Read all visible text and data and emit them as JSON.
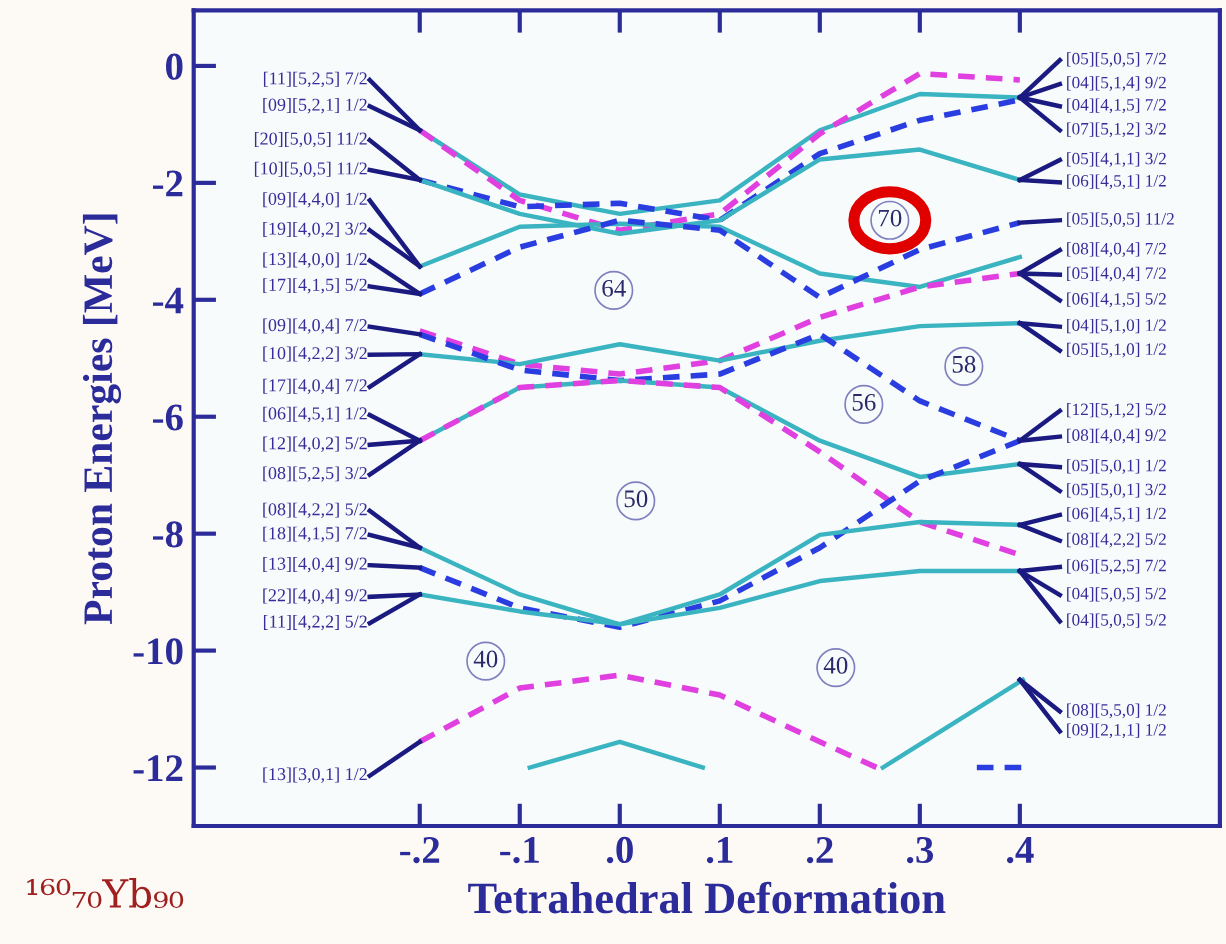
{
  "chart_data": {
    "type": "line",
    "xlabel": "Tetrahedral Deformation",
    "ylabel": "Proton Energies [MeV]",
    "xlim": [
      -0.426,
      0.6
    ],
    "ylim": [
      -13,
      0.95
    ],
    "xticks": [
      {
        "value": -0.2,
        "label": "-.2"
      },
      {
        "value": -0.1,
        "label": "-.1"
      },
      {
        "value": 0,
        "label": ".0"
      },
      {
        "value": 0.1,
        "label": ".1"
      },
      {
        "value": 0.2,
        "label": ".2"
      },
      {
        "value": 0.3,
        "label": ".3"
      },
      {
        "value": 0.4,
        "label": ".4"
      }
    ],
    "yticks": [
      0,
      -2,
      -4,
      -6,
      -8,
      -10,
      -12
    ],
    "grid": false,
    "series": [
      {
        "color": "#3bb4c1",
        "line_style": "solid",
        "x": [
          -0.2,
          -0.1,
          0,
          0.1,
          0.2,
          0.3,
          0.4
        ],
        "values": [
          -1.1,
          -2.2,
          -2.53,
          -2.3,
          -1.1,
          -0.48,
          -0.54
        ]
      },
      {
        "color": "#e040e0",
        "line_style": "dashed",
        "x": [
          -0.2,
          -0.1,
          0,
          0.1,
          0.2,
          0.3,
          0.4
        ],
        "values": [
          -1.1,
          -2.3,
          -2.81,
          -2.53,
          -1.16,
          -0.13,
          -0.24
        ]
      },
      {
        "color": "#2a3de0",
        "line_style": "dashed",
        "x": [
          -0.2,
          -0.1,
          0,
          0.1,
          0.2,
          0.3,
          0.4
        ],
        "values": [
          -1.95,
          -2.41,
          -2.35,
          -2.64,
          -1.5,
          -0.93,
          -0.58
        ]
      },
      {
        "color": "#3bb4c1",
        "line_style": "solid",
        "x": [
          -0.2,
          -0.1,
          0,
          0.1,
          0.2,
          0.3,
          0.4
        ],
        "values": [
          -1.95,
          -2.53,
          -2.87,
          -2.64,
          -1.6,
          -1.43,
          -1.95
        ]
      },
      {
        "color": "#3bb4c1",
        "line_style": "solid",
        "x": [
          -0.2,
          -0.1,
          0,
          0.1,
          0.2,
          0.3,
          0.4
        ],
        "values": [
          -3.43,
          -2.75,
          -2.7,
          -2.75,
          -3.55,
          -3.78,
          -3.27
        ]
      },
      {
        "color": "#2a3de0",
        "line_style": "dashed",
        "x": [
          -0.2,
          -0.1,
          0,
          0.1,
          0.2,
          0.3,
          0.4
        ],
        "values": [
          -3.9,
          -3.1,
          -2.64,
          -2.81,
          -3.96,
          -3.14,
          -2.68
        ]
      },
      {
        "color": "#e040e0",
        "line_style": "dashed",
        "x": [
          -0.2,
          -0.1,
          0,
          0.1,
          0.2,
          0.3,
          0.4
        ],
        "values": [
          -4.53,
          -5.1,
          -5.27,
          -5.04,
          -4.3,
          -3.78,
          -3.55
        ]
      },
      {
        "color": "#3bb4c1",
        "line_style": "solid",
        "x": [
          -0.2,
          -0.1,
          0,
          0.1,
          0.2,
          0.3,
          0.4
        ],
        "values": [
          -4.93,
          -5.1,
          -4.76,
          -5.04,
          -4.7,
          -4.45,
          -4.4
        ]
      },
      {
        "color": "#2a3de0",
        "line_style": "dashed",
        "x": [
          -0.2,
          -0.1,
          0,
          0.1,
          0.2,
          0.3,
          0.4
        ],
        "values": [
          -4.59,
          -5.2,
          -5.38,
          -5.27,
          -4.59,
          -5.73,
          -6.41
        ]
      },
      {
        "color": "#3bb4c1",
        "line_style": "solid",
        "x": [
          -0.2,
          -0.1,
          0,
          0.1,
          0.2,
          0.3,
          0.4
        ],
        "values": [
          -6.41,
          -5.5,
          -5.38,
          -5.5,
          -6.41,
          -7.03,
          -6.81
        ]
      },
      {
        "color": "#e040e0",
        "line_style": "dashed",
        "x": [
          -0.2,
          -0.1,
          0,
          0.1,
          0.2,
          0.3,
          0.4
        ],
        "values": [
          -6.41,
          -5.5,
          -5.38,
          -5.5,
          -6.6,
          -7.8,
          -8.36
        ]
      },
      {
        "color": "#2a3de0",
        "line_style": "dashed",
        "x": [
          -0.2,
          -0.1,
          0,
          0.1,
          0.2,
          0.3,
          0.4
        ],
        "values": [
          -8.58,
          -9.27,
          -9.6,
          -9.15,
          -8.24,
          -7.1,
          -6.41
        ]
      },
      {
        "color": "#3bb4c1",
        "line_style": "solid",
        "x": [
          -0.2,
          -0.1,
          0,
          0.1,
          0.2,
          0.3,
          0.4
        ],
        "values": [
          -8.24,
          -9.04,
          -9.55,
          -9.04,
          -8.02,
          -7.8,
          -7.85
        ]
      },
      {
        "color": "#3bb4c1",
        "line_style": "solid",
        "x": [
          -0.2,
          -0.1,
          0,
          0.1,
          0.2,
          0.3,
          0.4
        ],
        "values": [
          -9.04,
          -9.33,
          -9.55,
          -9.27,
          -8.81,
          -8.64,
          -8.64
        ]
      },
      {
        "color": "#e040e0",
        "line_style": "dashed",
        "x": [
          -0.2,
          -0.1,
          0,
          0.1,
          0.2,
          0.257
        ],
        "values": [
          -11.56,
          -10.64,
          -10.42,
          -10.76,
          -11.56,
          -12.0
        ]
      },
      {
        "color": "#3bb4c1",
        "line_style": "solid",
        "x": [
          -0.09,
          0,
          0.083
        ],
        "values": [
          -12.0,
          -11.56,
          -12.0
        ]
      },
      {
        "color": "#3bb4c1",
        "line_style": "solid",
        "x": [
          0.263,
          0.403
        ],
        "values": [
          -12.0,
          -10.5
        ]
      },
      {
        "color": "#2a3de0",
        "line_style": "dashed",
        "x": [
          0.357,
          0.403
        ],
        "values": [
          -12.0,
          -12.0
        ]
      },
      {
        "color": "#1a1a80",
        "line_style": "solid",
        "x": [
          -0.25,
          -0.2
        ],
        "values": [
          -0.24,
          -1.1
        ]
      },
      {
        "color": "#1a1a80",
        "line_style": "solid",
        "x": [
          -0.25,
          -0.2
        ],
        "values": [
          -0.69,
          -1.1
        ]
      },
      {
        "color": "#1a1a80",
        "line_style": "solid",
        "x": [
          -0.25,
          -0.2
        ],
        "values": [
          -1.27,
          -1.95
        ]
      },
      {
        "color": "#1a1a80",
        "line_style": "solid",
        "x": [
          -0.25,
          -0.2
        ],
        "values": [
          -1.78,
          -1.95
        ]
      },
      {
        "color": "#1a1a80",
        "line_style": "solid",
        "x": [
          -0.25,
          -0.2
        ],
        "values": [
          -2.3,
          -3.43
        ]
      },
      {
        "color": "#1a1a80",
        "line_style": "solid",
        "x": [
          -0.25,
          -0.2
        ],
        "values": [
          -2.81,
          -3.43
        ]
      },
      {
        "color": "#1a1a80",
        "line_style": "solid",
        "x": [
          -0.25,
          -0.2
        ],
        "values": [
          -3.33,
          -3.9
        ]
      },
      {
        "color": "#1a1a80",
        "line_style": "solid",
        "x": [
          -0.25,
          -0.2
        ],
        "values": [
          -3.77,
          -3.9
        ]
      },
      {
        "color": "#1a1a80",
        "line_style": "solid",
        "x": [
          -0.25,
          -0.2
        ],
        "values": [
          -4.46,
          -4.59
        ]
      },
      {
        "color": "#1a1a80",
        "line_style": "solid",
        "x": [
          -0.25,
          -0.2
        ],
        "values": [
          -4.94,
          -4.93
        ]
      },
      {
        "color": "#1a1a80",
        "line_style": "solid",
        "x": [
          -0.25,
          -0.2
        ],
        "values": [
          -5.49,
          -4.93
        ]
      },
      {
        "color": "#1a1a80",
        "line_style": "solid",
        "x": [
          -0.25,
          -0.2
        ],
        "values": [
          -5.97,
          -6.41
        ]
      },
      {
        "color": "#1a1a80",
        "line_style": "solid",
        "x": [
          -0.25,
          -0.2
        ],
        "values": [
          -6.48,
          -6.41
        ]
      },
      {
        "color": "#1a1a80",
        "line_style": "solid",
        "x": [
          -0.25,
          -0.2
        ],
        "values": [
          -6.99,
          -6.41
        ]
      },
      {
        "color": "#1a1a80",
        "line_style": "solid",
        "x": [
          -0.25,
          -0.2
        ],
        "values": [
          -7.61,
          -8.24
        ]
      },
      {
        "color": "#1a1a80",
        "line_style": "solid",
        "x": [
          -0.25,
          -0.2
        ],
        "values": [
          -8.02,
          -8.24
        ]
      },
      {
        "color": "#1a1a80",
        "line_style": "solid",
        "x": [
          -0.25,
          -0.2
        ],
        "values": [
          -8.54,
          -8.58
        ]
      },
      {
        "color": "#1a1a80",
        "line_style": "solid",
        "x": [
          -0.25,
          -0.2
        ],
        "values": [
          -9.08,
          -9.04
        ]
      },
      {
        "color": "#1a1a80",
        "line_style": "solid",
        "x": [
          -0.25,
          -0.2
        ],
        "values": [
          -9.53,
          -9.04
        ]
      },
      {
        "color": "#1a1a80",
        "line_style": "solid",
        "x": [
          -0.25,
          -0.2
        ],
        "values": [
          -12.14,
          -11.56
        ]
      },
      {
        "color": "#1a1a80",
        "line_style": "solid",
        "x": [
          0.4,
          0.44
        ],
        "values": [
          -0.54,
          0.1
        ]
      },
      {
        "color": "#1a1a80",
        "line_style": "solid",
        "x": [
          0.4,
          0.44
        ],
        "values": [
          -0.54,
          -0.31
        ]
      },
      {
        "color": "#1a1a80",
        "line_style": "solid",
        "x": [
          0.4,
          0.44
        ],
        "values": [
          -0.54,
          -0.69
        ]
      },
      {
        "color": "#1a1a80",
        "line_style": "solid",
        "x": [
          0.4,
          0.44
        ],
        "values": [
          -0.54,
          -1.1
        ]
      },
      {
        "color": "#1a1a80",
        "line_style": "solid",
        "x": [
          0.4,
          0.44
        ],
        "values": [
          -1.95,
          -1.61
        ]
      },
      {
        "color": "#1a1a80",
        "line_style": "solid",
        "x": [
          0.4,
          0.44
        ],
        "values": [
          -1.95,
          -1.99
        ]
      },
      {
        "color": "#1a1a80",
        "line_style": "solid",
        "x": [
          0.4,
          0.44
        ],
        "values": [
          -2.68,
          -2.64
        ]
      },
      {
        "color": "#1a1a80",
        "line_style": "solid",
        "x": [
          0.4,
          0.44
        ],
        "values": [
          -3.55,
          -3.15
        ]
      },
      {
        "color": "#1a1a80",
        "line_style": "solid",
        "x": [
          0.4,
          0.44
        ],
        "values": [
          -3.55,
          -3.57
        ]
      },
      {
        "color": "#1a1a80",
        "line_style": "solid",
        "x": [
          0.4,
          0.44
        ],
        "values": [
          -3.55,
          -4.01
        ]
      },
      {
        "color": "#1a1a80",
        "line_style": "solid",
        "x": [
          0.4,
          0.44
        ],
        "values": [
          -4.4,
          -4.46
        ]
      },
      {
        "color": "#1a1a80",
        "line_style": "solid",
        "x": [
          0.4,
          0.44
        ],
        "values": [
          -4.4,
          -4.87
        ]
      },
      {
        "color": "#1a1a80",
        "line_style": "solid",
        "x": [
          0.4,
          0.44
        ],
        "values": [
          -6.41,
          -5.9
        ]
      },
      {
        "color": "#1a1a80",
        "line_style": "solid",
        "x": [
          0.4,
          0.44
        ],
        "values": [
          -6.41,
          -6.34
        ]
      },
      {
        "color": "#1a1a80",
        "line_style": "solid",
        "x": [
          0.4,
          0.44
        ],
        "values": [
          -6.81,
          -6.86
        ]
      },
      {
        "color": "#1a1a80",
        "line_style": "solid",
        "x": [
          0.4,
          0.44
        ],
        "values": [
          -6.81,
          -7.27
        ]
      },
      {
        "color": "#1a1a80",
        "line_style": "solid",
        "x": [
          0.4,
          0.44
        ],
        "values": [
          -7.85,
          -7.68
        ]
      },
      {
        "color": "#1a1a80",
        "line_style": "solid",
        "x": [
          0.4,
          0.44
        ],
        "values": [
          -7.85,
          -8.12
        ]
      },
      {
        "color": "#1a1a80",
        "line_style": "solid",
        "x": [
          0.4,
          0.44
        ],
        "values": [
          -8.64,
          -8.57
        ]
      },
      {
        "color": "#1a1a80",
        "line_style": "solid",
        "x": [
          0.4,
          0.44
        ],
        "values": [
          -8.64,
          -9.05
        ]
      },
      {
        "color": "#1a1a80",
        "line_style": "solid",
        "x": [
          0.4,
          0.44
        ],
        "values": [
          -8.64,
          -9.5
        ]
      },
      {
        "color": "#1a1a80",
        "line_style": "solid",
        "x": [
          0.4,
          0.44
        ],
        "values": [
          -10.5,
          -11.04
        ]
      },
      {
        "color": "#1a1a80",
        "line_style": "solid",
        "x": [
          0.4,
          0.44
        ],
        "values": [
          -10.5,
          -11.38
        ]
      }
    ],
    "annotations": [
      {
        "text": "[11][5,2,5] 7/2",
        "x": -0.252,
        "y": -0.24
      },
      {
        "text": "[09][5,2,1] 1/2",
        "x": -0.252,
        "y": -0.69
      },
      {
        "text": "[20][5,0,5] 11/2",
        "x": -0.252,
        "y": -1.27
      },
      {
        "text": "[10][5,0,5] 11/2",
        "x": -0.252,
        "y": -1.78
      },
      {
        "text": "[09][4,4,0] 1/2",
        "x": -0.252,
        "y": -2.3
      },
      {
        "text": "[19][4,0,2] 3/2",
        "x": -0.252,
        "y": -2.81
      },
      {
        "text": "[13][4,0,0] 1/2",
        "x": -0.252,
        "y": -3.33
      },
      {
        "text": "[17][4,1,5] 5/2",
        "x": -0.252,
        "y": -3.77
      },
      {
        "text": "[09][4,0,4] 7/2",
        "x": -0.252,
        "y": -4.46
      },
      {
        "text": "[10][4,2,2] 3/2",
        "x": -0.252,
        "y": -4.94
      },
      {
        "text": "[17][4,0,4] 7/2",
        "x": -0.252,
        "y": -5.49
      },
      {
        "text": "[06][4,5,1] 1/2",
        "x": -0.252,
        "y": -5.97
      },
      {
        "text": "[12][4,0,2] 5/2",
        "x": -0.252,
        "y": -6.48
      },
      {
        "text": "[08][5,2,5] 3/2",
        "x": -0.252,
        "y": -6.99
      },
      {
        "text": "[08][4,2,2] 5/2",
        "x": -0.252,
        "y": -7.61
      },
      {
        "text": "[18][4,1,5] 7/2",
        "x": -0.252,
        "y": -8.02
      },
      {
        "text": "[13][4,0,4] 9/2",
        "x": -0.252,
        "y": -8.54
      },
      {
        "text": "[22][4,0,4] 9/2",
        "x": -0.252,
        "y": -9.08
      },
      {
        "text": "[11][4,2,2] 5/2",
        "x": -0.252,
        "y": -9.53
      },
      {
        "text": "[13][3,0,1] 1/2",
        "x": -0.252,
        "y": -12.14
      },
      {
        "text": "[05][5,0,5] 7/2",
        "x": 0.446,
        "y": 0.1
      },
      {
        "text": "[04][5,1,4] 9/2",
        "x": 0.446,
        "y": -0.31
      },
      {
        "text": "[04][4,1,5] 7/2",
        "x": 0.446,
        "y": -0.69
      },
      {
        "text": "[07][5,1,2] 3/2",
        "x": 0.446,
        "y": -1.1
      },
      {
        "text": "[05][4,1,1] 3/2",
        "x": 0.446,
        "y": -1.61
      },
      {
        "text": "[06][4,5,1] 1/2",
        "x": 0.446,
        "y": -1.99
      },
      {
        "text": "[05][5,0,5] 11/2",
        "x": 0.446,
        "y": -2.64
      },
      {
        "text": "[08][4,0,4] 7/2",
        "x": 0.446,
        "y": -3.15
      },
      {
        "text": "[05][4,0,4] 7/2",
        "x": 0.446,
        "y": -3.57
      },
      {
        "text": "[06][4,1,5] 5/2",
        "x": 0.446,
        "y": -4.01
      },
      {
        "text": "[04][5,1,0] 1/2",
        "x": 0.446,
        "y": -4.46
      },
      {
        "text": "[05][5,1,0] 1/2",
        "x": 0.446,
        "y": -4.87
      },
      {
        "text": "[12][5,1,2] 5/2",
        "x": 0.446,
        "y": -5.9
      },
      {
        "text": "[08][4,0,4] 9/2",
        "x": 0.446,
        "y": -6.34
      },
      {
        "text": "[05][5,0,1] 1/2",
        "x": 0.446,
        "y": -6.86
      },
      {
        "text": "[05][5,0,1] 3/2",
        "x": 0.446,
        "y": -7.27
      },
      {
        "text": "[06][4,5,1] 1/2",
        "x": 0.446,
        "y": -7.68
      },
      {
        "text": "[08][4,2,2] 5/2",
        "x": 0.446,
        "y": -8.12
      },
      {
        "text": "[06][5,2,5] 7/2",
        "x": 0.446,
        "y": -8.57
      },
      {
        "text": "[04][5,0,5] 5/2",
        "x": 0.446,
        "y": -9.05
      },
      {
        "text": "[04][5,0,5] 5/2",
        "x": 0.446,
        "y": -9.5
      },
      {
        "text": "[08][5,5,0] 1/2",
        "x": 0.446,
        "y": -11.04
      },
      {
        "text": "[09][2,1,1] 1/2",
        "x": 0.446,
        "y": -11.38
      },
      {
        "text": "70",
        "x": 0.27,
        "y": -2.64
      },
      {
        "text": "64",
        "x": -0.006,
        "y": -3.84
      },
      {
        "text": "58",
        "x": 0.344,
        "y": -5.14
      },
      {
        "text": "56",
        "x": 0.244,
        "y": -5.79
      },
      {
        "text": "50",
        "x": 0.016,
        "y": -7.44
      },
      {
        "text": "40",
        "x": -0.134,
        "y": -10.18
      },
      {
        "text": "40",
        "x": 0.216,
        "y": -10.29
      },
      "¹⁶⁰₇₀Yb₉₀"
    ]
  }
}
